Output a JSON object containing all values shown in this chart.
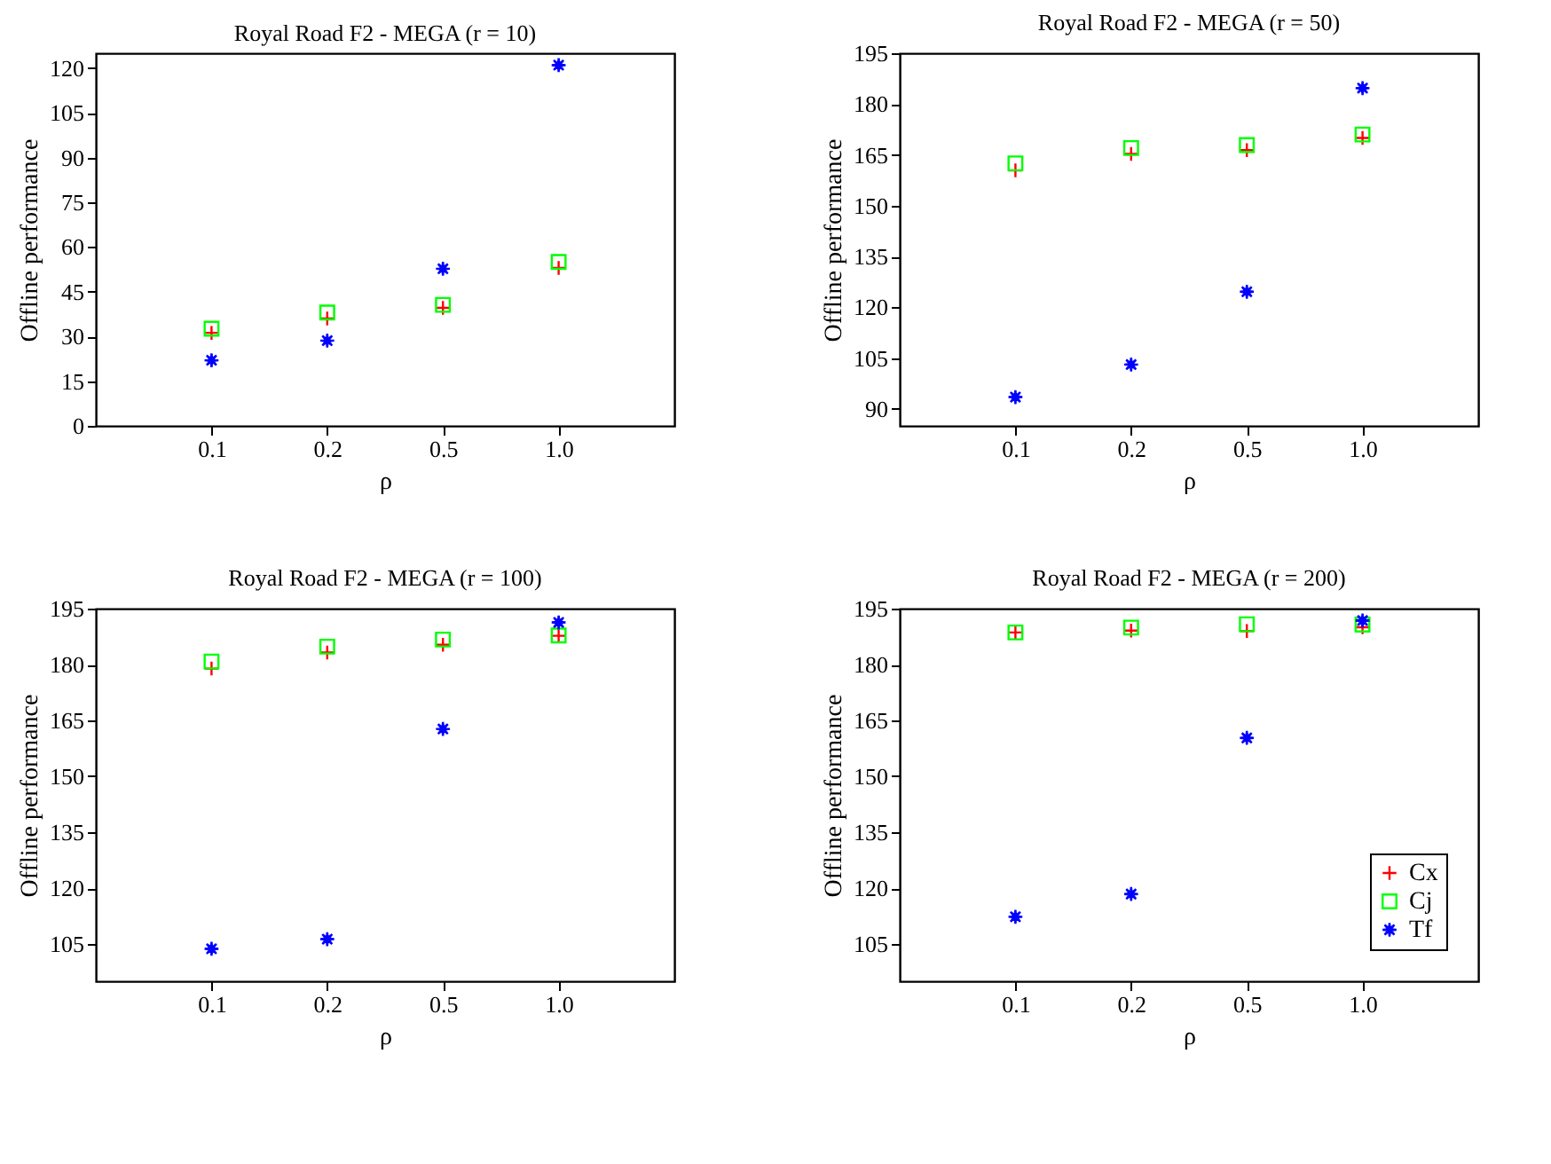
{
  "chart_data": [
    {
      "type": "scatter",
      "title": "Royal Road F2 - MEGA (r = 10)",
      "xlabel": "ρ",
      "ylabel": "Offline performance",
      "categories": [
        "0.1",
        "0.2",
        "0.5",
        "1.0"
      ],
      "ylim": [
        0,
        125
      ],
      "yticks": [
        0,
        15,
        30,
        45,
        60,
        75,
        90,
        105,
        120
      ],
      "series": [
        {
          "color": "#ff0000",
          "marker": "cross",
          "values": [
            31.2,
            36,
            39.6,
            53
          ]
        },
        {
          "color": "#00ff00",
          "marker": "square",
          "values": [
            32.6,
            38,
            40.6,
            55
          ]
        },
        {
          "color": "#0000ff",
          "marker": "star",
          "values": [
            22,
            28.6,
            52.7,
            121
          ]
        }
      ]
    },
    {
      "type": "scatter",
      "title": "Royal Road F2 - MEGA (r = 50)",
      "xlabel": "ρ",
      "ylabel": "Offline performance",
      "categories": [
        "0.1",
        "0.2",
        "0.5",
        "1.0"
      ],
      "ylim": [
        85,
        195
      ],
      "yticks": [
        90,
        105,
        120,
        135,
        150,
        165,
        180,
        195
      ],
      "series": [
        {
          "color": "#ff0000",
          "marker": "cross",
          "values": [
            160.4,
            165.3,
            166.4,
            170
          ]
        },
        {
          "color": "#00ff00",
          "marker": "square",
          "values": [
            162.5,
            167,
            167.9,
            171
          ]
        },
        {
          "color": "#0000ff",
          "marker": "star",
          "values": [
            93.5,
            103.1,
            124.6,
            184.7
          ]
        }
      ]
    },
    {
      "type": "scatter",
      "title": "Royal Road F2 - MEGA (r = 100)",
      "xlabel": "ρ",
      "ylabel": "Offline performance",
      "categories": [
        "0.1",
        "0.2",
        "0.5",
        "1.0"
      ],
      "ylim": [
        95,
        195
      ],
      "yticks": [
        105,
        120,
        135,
        150,
        165,
        180,
        195
      ],
      "series": [
        {
          "color": "#ff0000",
          "marker": "cross",
          "values": [
            178.9,
            183.2,
            185.3,
            187.7
          ]
        },
        {
          "color": "#00ff00",
          "marker": "square",
          "values": [
            180.8,
            184.8,
            186.7,
            187.8
          ]
        },
        {
          "color": "#0000ff",
          "marker": "star",
          "values": [
            103.7,
            106.3,
            162.7,
            191.3
          ]
        }
      ]
    },
    {
      "type": "scatter",
      "title": "Royal Road F2 - MEGA (r = 200)",
      "xlabel": "ρ",
      "ylabel": "Offline performance",
      "categories": [
        "0.1",
        "0.2",
        "0.5",
        "1.0"
      ],
      "ylim": [
        95,
        195
      ],
      "yticks": [
        105,
        120,
        135,
        150,
        165,
        180,
        195
      ],
      "legend": "bottom right",
      "series": [
        {
          "name": "Cx",
          "color": "#ff0000",
          "marker": "cross",
          "values": [
            188.6,
            189.1,
            189,
            190
          ]
        },
        {
          "name": "Cj",
          "color": "#00ff00",
          "marker": "square",
          "values": [
            188.6,
            189.9,
            190.8,
            190.7
          ]
        },
        {
          "name": "Tf",
          "color": "#0000ff",
          "marker": "star",
          "values": [
            112.3,
            118.4,
            160.3,
            191.8
          ]
        }
      ]
    }
  ]
}
